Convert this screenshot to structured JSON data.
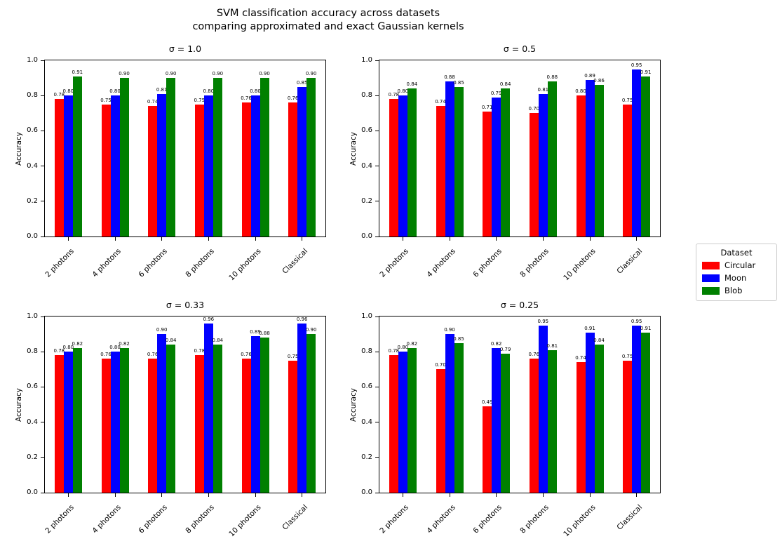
{
  "figure": {
    "title_line1": "SVM classification accuracy across datasets",
    "title_line2": "comparing approximated and exact Gaussian kernels"
  },
  "legend": {
    "title": "Dataset",
    "entries": [
      {
        "label": "Circular",
        "color": "#ff0000"
      },
      {
        "label": "Moon",
        "color": "#0000ff"
      },
      {
        "label": "Blob",
        "color": "#008000"
      }
    ],
    "position": "center right, outside axes"
  },
  "chart_data": [
    {
      "type": "bar",
      "title": "σ = 1.0",
      "categories": [
        "2 photons",
        "4 photons",
        "6 photons",
        "8 photons",
        "10 photons",
        "Classical"
      ],
      "series": [
        {
          "name": "Circular",
          "color": "#ff0000",
          "values": [
            0.78,
            0.75,
            0.74,
            0.75,
            0.76,
            0.76
          ]
        },
        {
          "name": "Moon",
          "color": "#0000ff",
          "values": [
            0.8,
            0.8,
            0.81,
            0.8,
            0.8,
            0.85
          ]
        },
        {
          "name": "Blob",
          "color": "#008000",
          "values": [
            0.91,
            0.9,
            0.9,
            0.9,
            0.9,
            0.9
          ]
        }
      ],
      "xlabel": "",
      "ylabel": "Accuracy",
      "ylim": [
        0.0,
        1.0
      ],
      "yticks": [
        0.0,
        0.2,
        0.4,
        0.6,
        0.8,
        1.0
      ],
      "bar_labels": true,
      "xtick_rotation": 45,
      "grid": false
    },
    {
      "type": "bar",
      "title": "σ = 0.5",
      "categories": [
        "2 photons",
        "4 photons",
        "6 photons",
        "8 photons",
        "10 photons",
        "Classical"
      ],
      "series": [
        {
          "name": "Circular",
          "color": "#ff0000",
          "values": [
            0.78,
            0.74,
            0.71,
            0.7,
            0.8,
            0.75
          ]
        },
        {
          "name": "Moon",
          "color": "#0000ff",
          "values": [
            0.8,
            0.88,
            0.79,
            0.81,
            0.89,
            0.95
          ]
        },
        {
          "name": "Blob",
          "color": "#008000",
          "values": [
            0.84,
            0.85,
            0.84,
            0.88,
            0.86,
            0.91
          ]
        }
      ],
      "xlabel": "",
      "ylabel": "Accuracy",
      "ylim": [
        0.0,
        1.0
      ],
      "yticks": [
        0.0,
        0.2,
        0.4,
        0.6,
        0.8,
        1.0
      ],
      "bar_labels": true,
      "xtick_rotation": 45,
      "grid": false
    },
    {
      "type": "bar",
      "title": "σ = 0.33",
      "categories": [
        "2 photons",
        "4 photons",
        "6 photons",
        "8 photons",
        "10 photons",
        "Classical"
      ],
      "series": [
        {
          "name": "Circular",
          "color": "#ff0000",
          "values": [
            0.78,
            0.76,
            0.76,
            0.78,
            0.76,
            0.75
          ]
        },
        {
          "name": "Moon",
          "color": "#0000ff",
          "values": [
            0.8,
            0.8,
            0.9,
            0.96,
            0.89,
            0.96
          ]
        },
        {
          "name": "Blob",
          "color": "#008000",
          "values": [
            0.82,
            0.82,
            0.84,
            0.84,
            0.88,
            0.9
          ]
        }
      ],
      "xlabel": "",
      "ylabel": "Accuracy",
      "ylim": [
        0.0,
        1.0
      ],
      "yticks": [
        0.0,
        0.2,
        0.4,
        0.6,
        0.8,
        1.0
      ],
      "bar_labels": true,
      "xtick_rotation": 45,
      "grid": false
    },
    {
      "type": "bar",
      "title": "σ = 0.25",
      "categories": [
        "2 photons",
        "4 photons",
        "6 photons",
        "8 photons",
        "10 photons",
        "Classical"
      ],
      "series": [
        {
          "name": "Circular",
          "color": "#ff0000",
          "values": [
            0.78,
            0.7,
            0.49,
            0.76,
            0.74,
            0.75
          ]
        },
        {
          "name": "Moon",
          "color": "#0000ff",
          "values": [
            0.8,
            0.9,
            0.82,
            0.95,
            0.91,
            0.95
          ]
        },
        {
          "name": "Blob",
          "color": "#008000",
          "values": [
            0.82,
            0.85,
            0.79,
            0.81,
            0.84,
            0.91
          ]
        }
      ],
      "xlabel": "",
      "ylabel": "Accuracy",
      "ylim": [
        0.0,
        1.0
      ],
      "yticks": [
        0.0,
        0.2,
        0.4,
        0.6,
        0.8,
        1.0
      ],
      "bar_labels": true,
      "xtick_rotation": 45,
      "grid": false
    }
  ]
}
